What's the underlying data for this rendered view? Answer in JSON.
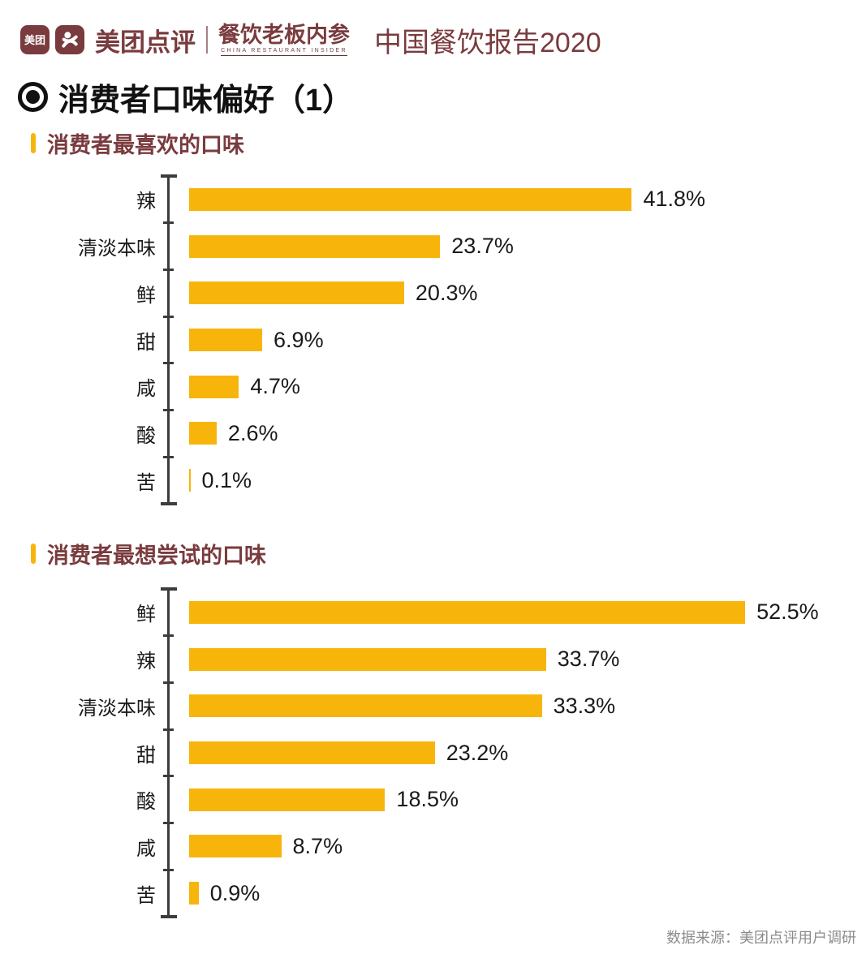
{
  "header": {
    "logo_badge_text": "美团",
    "brand": "美团点评",
    "partner": "餐饮老板内参",
    "partner_sub": "CHINA RESTAURANT INSIDER",
    "report_title": "中国餐饮报告2020"
  },
  "page_title": "消费者口味偏好（1）",
  "footer": "数据来源：美团点评用户调研",
  "colors": {
    "brand_maroon": "#7A3B3E",
    "bar_yellow": "#F7B50C",
    "axis_gray": "#3C3C3C",
    "footer_gray": "#8C8C8C"
  },
  "chart_data": [
    {
      "type": "bar",
      "orientation": "horizontal",
      "title": "消费者最喜欢的口味",
      "categories": [
        "辣",
        "清淡本味",
        "鲜",
        "甜",
        "咸",
        "酸",
        "苦"
      ],
      "values": [
        41.8,
        23.7,
        20.3,
        6.9,
        4.7,
        2.6,
        0.1
      ],
      "value_labels": [
        "41.8%",
        "23.7%",
        "20.3%",
        "6.9%",
        "4.7%",
        "2.6%",
        "0.1%"
      ],
      "unit": "%",
      "xlim": [
        0,
        63
      ],
      "grid": false,
      "legend": false
    },
    {
      "type": "bar",
      "orientation": "horizontal",
      "title": "消费者最想尝试的口味",
      "categories": [
        "鲜",
        "辣",
        "清淡本味",
        "甜",
        "酸",
        "咸",
        "苦"
      ],
      "values": [
        52.5,
        33.7,
        33.3,
        23.2,
        18.5,
        8.7,
        0.9
      ],
      "value_labels": [
        "52.5%",
        "33.7%",
        "33.3%",
        "23.2%",
        "18.5%",
        "8.7%",
        "0.9%"
      ],
      "unit": "%",
      "xlim": [
        0,
        63
      ],
      "grid": false,
      "legend": false
    }
  ]
}
